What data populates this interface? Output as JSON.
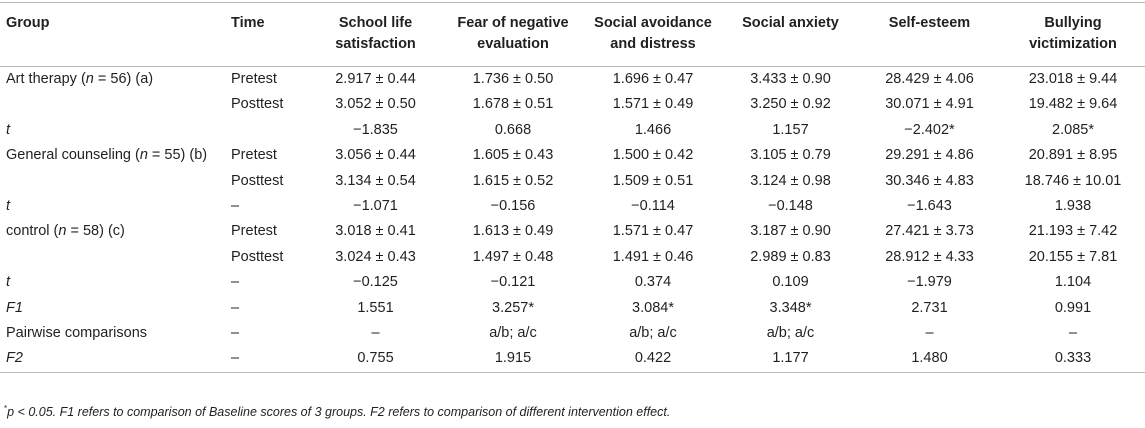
{
  "table": {
    "headers": [
      "Group",
      "Time",
      "School life satisfaction",
      "Fear of negative evaluation",
      "Social avoidance and distress",
      "Social anxiety",
      "Self-esteem",
      "Bullying victimization"
    ],
    "header_lines": [
      [
        "Group"
      ],
      [
        "Time"
      ],
      [
        "School life",
        "satisfaction"
      ],
      [
        "Fear of negative",
        "evaluation"
      ],
      [
        "Social avoidance",
        "and distress"
      ],
      [
        "Social anxiety"
      ],
      [
        "Self-esteem"
      ],
      [
        "Bullying",
        "victimization"
      ]
    ],
    "rows": [
      {
        "group_pre": "Art therapy (",
        "group_n": "n",
        "group_post": " = 56) (a)",
        "time": "Pretest",
        "cells": [
          "2.917 ± 0.44",
          "1.736 ± 0.50",
          "1.696 ± 0.47",
          "3.433 ± 0.90",
          "28.429 ± 4.06",
          "23.018 ± 9.44"
        ]
      },
      {
        "group_pre": "",
        "group_n": "",
        "group_post": "",
        "time": "Posttest",
        "cells": [
          "3.052 ± 0.50",
          "1.678 ± 0.51",
          "1.571 ± 0.49",
          "3.250 ± 0.92",
          "30.071 ± 4.91",
          "19.482 ± 9.64"
        ]
      },
      {
        "group_italic": "t",
        "time": "",
        "cells": [
          "−1.835",
          "0.668",
          "1.466",
          "1.157",
          "−2.402*",
          "2.085*"
        ]
      },
      {
        "group_pre": "General counseling (",
        "group_n": "n",
        "group_post": " = 55) (b)",
        "time": "Pretest",
        "cells": [
          "3.056 ± 0.44",
          "1.605 ± 0.43",
          "1.500 ± 0.42",
          "3.105 ± 0.79",
          "29.291 ± 4.86",
          "20.891 ± 8.95"
        ]
      },
      {
        "group_pre": "",
        "group_n": "",
        "group_post": "",
        "time": "Posttest",
        "cells": [
          "3.134 ± 0.54",
          "1.615 ± 0.52",
          "1.509 ± 0.51",
          "3.124 ± 0.98",
          "30.346 ± 4.83",
          "18.746 ± 10.01"
        ]
      },
      {
        "group_italic": "t",
        "time": "–",
        "cells": [
          "−1.071",
          "−0.156",
          "−0.114",
          "−0.148",
          "−1.643",
          "1.938"
        ]
      },
      {
        "group_pre": "control (",
        "group_n": "n",
        "group_post": " = 58) (c)",
        "time": "Pretest",
        "cells": [
          "3.018 ± 0.41",
          "1.613 ± 0.49",
          "1.571 ± 0.47",
          "3.187 ± 0.90",
          "27.421 ± 3.73",
          "21.193 ± 7.42"
        ]
      },
      {
        "group_pre": "",
        "group_n": "",
        "group_post": "",
        "time": "Posttest",
        "cells": [
          "3.024 ± 0.43",
          "1.497 ± 0.48",
          "1.491 ± 0.46",
          "2.989 ± 0.83",
          "28.912 ± 4.33",
          "20.155 ± 7.81"
        ]
      },
      {
        "group_italic": "t",
        "time": "–",
        "cells": [
          "−0.125",
          "−0.121",
          "0.374",
          "0.109",
          "−1.979",
          "1.104"
        ]
      },
      {
        "group_italic": "F1",
        "time": "–",
        "cells": [
          "1.551",
          "3.257*",
          "3.084*",
          "3.348*",
          "2.731",
          "0.991"
        ]
      },
      {
        "group_pre": "Pairwise comparisons",
        "group_n": "",
        "group_post": "",
        "time": "–",
        "cells": [
          "–",
          "a/b; a/c",
          "a/b; a/c",
          "a/b; a/c",
          "–",
          "–"
        ]
      },
      {
        "group_italic": "F2",
        "time": "–",
        "cells": [
          "0.755",
          "1.915",
          "0.422",
          "1.177",
          "1.480",
          "0.333"
        ]
      }
    ]
  },
  "footnote": {
    "marker": "*",
    "text": "p < 0.05. F1 refers to comparison of Baseline scores of 3 groups. F2 refers to comparison of different intervention effect."
  }
}
